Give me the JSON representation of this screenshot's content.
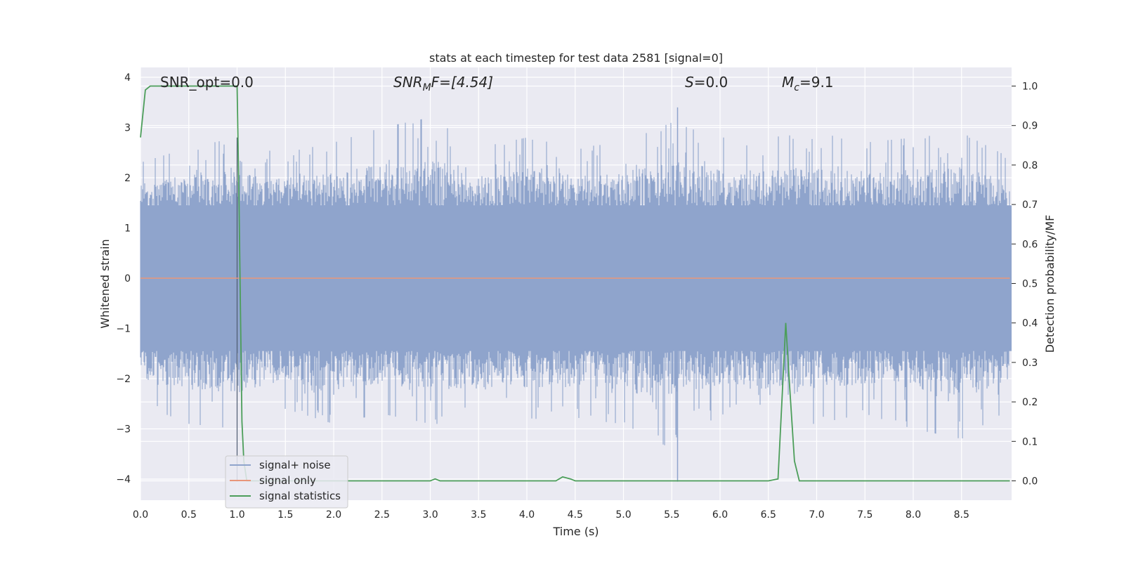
{
  "chart_data": {
    "type": "line",
    "title": "stats at each timestep for test data 2581 [signal=0]",
    "xlabel": "Time (s)",
    "ylabel": "Whitened strain",
    "y2label": "Detection probability/MF",
    "xlim": [
      0.0,
      9.0
    ],
    "ylim": [
      -4.4,
      4.2
    ],
    "y2lim": [
      -0.05,
      1.05
    ],
    "xticks": [
      "0.0",
      "0.5",
      "1.0",
      "1.5",
      "2.0",
      "2.5",
      "3.0",
      "3.5",
      "4.0",
      "4.5",
      "5.0",
      "5.5",
      "6.0",
      "6.5",
      "7.0",
      "7.5",
      "8.0",
      "8.5"
    ],
    "yticks": [
      "4",
      "3",
      "2",
      "1",
      "0",
      "−1",
      "−2",
      "−3",
      "−4"
    ],
    "y2ticks": [
      "1.0",
      "0.9",
      "0.8",
      "0.7",
      "0.6",
      "0.5",
      "0.4",
      "0.3",
      "0.2",
      "0.1",
      "0.0"
    ],
    "grid": true,
    "legend_position": "lower-left",
    "annotations": {
      "snr_opt": "SNR_opt=0.0",
      "snr_mf_base": "SNR",
      "snr_mf_sub": "M",
      "snr_mf_rest": "F=[4.54]",
      "s_italic": "S",
      "s_rest": "=0.0",
      "mc_base": "M",
      "mc_sub": "c",
      "mc_rest": "=9.1"
    },
    "series": [
      {
        "name": "signal+ noise",
        "color": "#8fa4cc",
        "description_of_values": "whitened noise, roughly within ±2.5 with spikes to about ±3.5; sample shown as envelope",
        "envelope": {
          "t": [
            0.0,
            0.5,
            1.0,
            1.5,
            2.0,
            2.5,
            3.0,
            3.5,
            4.0,
            4.5,
            5.0,
            5.5,
            6.0,
            6.5,
            7.0,
            7.5,
            8.0,
            8.5,
            9.0
          ],
          "upper": [
            2.3,
            2.6,
            2.8,
            2.5,
            2.7,
            3.0,
            3.2,
            2.6,
            2.8,
            2.6,
            2.7,
            3.1,
            2.8,
            2.8,
            2.9,
            2.7,
            2.8,
            2.9,
            2.4
          ],
          "lower": [
            -2.5,
            -2.9,
            -3.0,
            -2.6,
            -2.9,
            -2.7,
            -2.9,
            -2.9,
            -2.8,
            -2.8,
            -2.9,
            -3.4,
            -2.7,
            -2.9,
            -2.9,
            -2.7,
            -3.0,
            -3.2,
            -2.6
          ]
        }
      },
      {
        "name": "signal only",
        "color": "#e8967a",
        "x": [
          0.0,
          9.0
        ],
        "y": [
          0.0,
          0.0
        ]
      },
      {
        "name": "signal statistics",
        "color": "#4c9e5a",
        "axis": "right",
        "x": [
          0.0,
          0.05,
          0.1,
          0.2,
          0.5,
          0.9,
          0.95,
          1.0,
          1.02,
          1.05,
          1.07,
          1.1,
          1.5,
          2.0,
          2.5,
          3.0,
          3.05,
          3.1,
          3.15,
          3.5,
          4.0,
          4.3,
          4.37,
          4.45,
          4.5,
          5.0,
          5.5,
          6.0,
          6.5,
          6.6,
          6.64,
          6.68,
          6.72,
          6.77,
          6.82,
          7.0,
          8.0,
          9.0
        ],
        "y": [
          0.87,
          0.99,
          1.0,
          1.0,
          1.0,
          1.0,
          1.0,
          1.0,
          0.7,
          0.15,
          0.05,
          0.0,
          0.0,
          0.0,
          0.0,
          0.0,
          0.005,
          0.0,
          0.0,
          0.0,
          0.0,
          0.0,
          0.01,
          0.005,
          0.0,
          0.0,
          0.0,
          0.0,
          0.0,
          0.005,
          0.2,
          0.4,
          0.24,
          0.05,
          0.0,
          0.0,
          0.0,
          0.0
        ]
      }
    ]
  }
}
